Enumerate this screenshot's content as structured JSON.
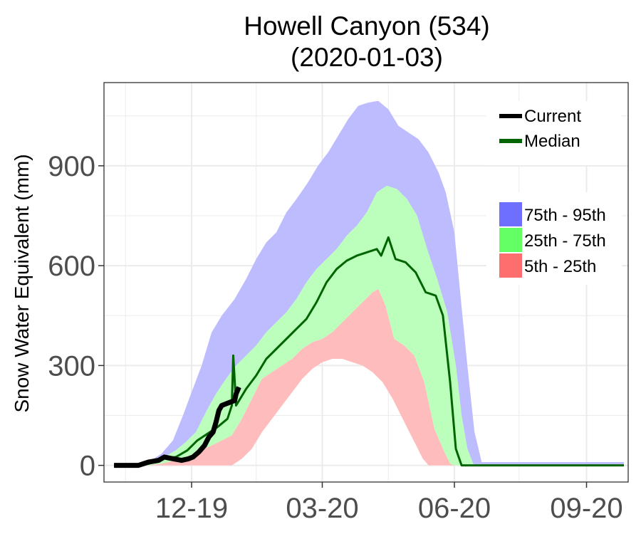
{
  "chart_data": {
    "type": "area",
    "title": [
      "Howell Canyon (534)",
      "(2020-01-03)"
    ],
    "ylabel": "Snow Water Equivalent (mm)",
    "xlabel": "",
    "xlim": [
      "2019-10-01",
      "2020-09-30"
    ],
    "ylim": [
      -50,
      1150
    ],
    "x_ticks": [
      {
        "date": "2019-12-01",
        "label": "12-19"
      },
      {
        "date": "2020-03-01",
        "label": "03-20"
      },
      {
        "date": "2020-06-01",
        "label": "06-20"
      },
      {
        "date": "2020-09-01",
        "label": "09-20"
      }
    ],
    "y_ticks": [
      0,
      300,
      600,
      900
    ],
    "grid": true,
    "legend_placement": "top-right",
    "colors": {
      "current": "#000000",
      "median": "#006400",
      "p75_95": "#6e6eff",
      "p25_75": "#64ff64",
      "p5_25": "#ff6e6e",
      "p75_95_fill": "#bcbcff",
      "p25_75_fill": "#bcffbc",
      "p5_25_fill": "#ffbcbc",
      "grid": "#ebebeb"
    },
    "legend": {
      "lines": [
        {
          "key": "current",
          "label": "Current"
        },
        {
          "key": "median",
          "label": "Median"
        }
      ],
      "bands": [
        {
          "key": "p75_95",
          "label": "75th - 95th"
        },
        {
          "key": "p25_75",
          "label": "25th - 75th"
        },
        {
          "key": "p5_25",
          "label": "5th - 25th"
        }
      ]
    },
    "series": {
      "p95": [
        [
          "2019-10-08",
          0
        ],
        [
          "2019-10-20",
          5
        ],
        [
          "2019-11-01",
          10
        ],
        [
          "2019-11-10",
          35
        ],
        [
          "2019-11-18",
          75
        ],
        [
          "2019-11-25",
          150
        ],
        [
          "2019-12-01",
          220
        ],
        [
          "2019-12-08",
          300
        ],
        [
          "2019-12-15",
          400
        ],
        [
          "2019-12-22",
          450
        ],
        [
          "2019-12-31",
          500
        ],
        [
          "2020-01-08",
          560
        ],
        [
          "2020-01-15",
          620
        ],
        [
          "2020-01-22",
          670
        ],
        [
          "2020-01-29",
          700
        ],
        [
          "2020-02-05",
          760
        ],
        [
          "2020-02-12",
          800
        ],
        [
          "2020-02-20",
          850
        ],
        [
          "2020-02-27",
          900
        ],
        [
          "2020-03-05",
          940
        ],
        [
          "2020-03-12",
          990
        ],
        [
          "2020-03-19",
          1040
        ],
        [
          "2020-03-26",
          1080
        ],
        [
          "2020-04-02",
          1090
        ],
        [
          "2020-04-09",
          1095
        ],
        [
          "2020-04-16",
          1070
        ],
        [
          "2020-04-23",
          1020
        ],
        [
          "2020-04-30",
          1000
        ],
        [
          "2020-05-07",
          980
        ],
        [
          "2020-05-14",
          940
        ],
        [
          "2020-05-21",
          880
        ],
        [
          "2020-05-26",
          820
        ],
        [
          "2020-06-01",
          700
        ],
        [
          "2020-06-05",
          520
        ],
        [
          "2020-06-10",
          300
        ],
        [
          "2020-06-15",
          100
        ],
        [
          "2020-06-20",
          10
        ],
        [
          "2020-09-27",
          10
        ]
      ],
      "p75": [
        [
          "2019-10-08",
          0
        ],
        [
          "2019-10-25",
          5
        ],
        [
          "2019-11-05",
          10
        ],
        [
          "2019-11-12",
          25
        ],
        [
          "2019-11-20",
          45
        ],
        [
          "2019-11-27",
          70
        ],
        [
          "2019-12-04",
          100
        ],
        [
          "2019-12-11",
          160
        ],
        [
          "2019-12-18",
          215
        ],
        [
          "2019-12-25",
          260
        ],
        [
          "2020-01-01",
          300
        ],
        [
          "2020-01-08",
          330
        ],
        [
          "2020-01-15",
          360
        ],
        [
          "2020-01-22",
          400
        ],
        [
          "2020-01-29",
          430
        ],
        [
          "2020-02-05",
          460
        ],
        [
          "2020-02-12",
          500
        ],
        [
          "2020-02-19",
          550
        ],
        [
          "2020-02-26",
          590
        ],
        [
          "2020-03-04",
          620
        ],
        [
          "2020-03-11",
          650
        ],
        [
          "2020-03-18",
          690
        ],
        [
          "2020-03-25",
          720
        ],
        [
          "2020-04-01",
          760
        ],
        [
          "2020-04-08",
          820
        ],
        [
          "2020-04-15",
          840
        ],
        [
          "2020-04-22",
          830
        ],
        [
          "2020-04-29",
          800
        ],
        [
          "2020-05-06",
          750
        ],
        [
          "2020-05-13",
          650
        ],
        [
          "2020-05-20",
          560
        ],
        [
          "2020-05-27",
          460
        ],
        [
          "2020-06-02",
          300
        ],
        [
          "2020-06-06",
          150
        ],
        [
          "2020-06-10",
          50
        ],
        [
          "2020-06-14",
          5
        ],
        [
          "2020-06-17",
          0
        ]
      ],
      "p25": [
        [
          "2019-10-08",
          0
        ],
        [
          "2019-11-01",
          0
        ],
        [
          "2019-11-10",
          5
        ],
        [
          "2019-11-20",
          15
        ],
        [
          "2019-11-30",
          30
        ],
        [
          "2019-12-10",
          50
        ],
        [
          "2019-12-20",
          70
        ],
        [
          "2019-12-29",
          90
        ],
        [
          "2020-01-05",
          140
        ],
        [
          "2020-01-12",
          200
        ],
        [
          "2020-01-19",
          260
        ],
        [
          "2020-01-26",
          280
        ],
        [
          "2020-02-02",
          300
        ],
        [
          "2020-02-09",
          320
        ],
        [
          "2020-02-16",
          350
        ],
        [
          "2020-02-23",
          370
        ],
        [
          "2020-03-01",
          380
        ],
        [
          "2020-03-08",
          400
        ],
        [
          "2020-03-15",
          430
        ],
        [
          "2020-03-22",
          460
        ],
        [
          "2020-03-29",
          490
        ],
        [
          "2020-04-05",
          520
        ],
        [
          "2020-04-09",
          530
        ],
        [
          "2020-04-14",
          480
        ],
        [
          "2020-04-20",
          380
        ],
        [
          "2020-04-27",
          360
        ],
        [
          "2020-05-04",
          330
        ],
        [
          "2020-05-11",
          250
        ],
        [
          "2020-05-18",
          110
        ],
        [
          "2020-05-25",
          40
        ],
        [
          "2020-05-29",
          5
        ],
        [
          "2020-06-01",
          0
        ]
      ],
      "p5": [
        [
          "2019-10-08",
          0
        ],
        [
          "2019-12-29",
          0
        ],
        [
          "2020-01-05",
          20
        ],
        [
          "2020-01-12",
          50
        ],
        [
          "2020-01-19",
          100
        ],
        [
          "2020-01-26",
          140
        ],
        [
          "2020-02-02",
          180
        ],
        [
          "2020-02-09",
          220
        ],
        [
          "2020-02-16",
          260
        ],
        [
          "2020-02-23",
          290
        ],
        [
          "2020-03-01",
          310
        ],
        [
          "2020-03-08",
          320
        ],
        [
          "2020-03-15",
          320
        ],
        [
          "2020-03-22",
          310
        ],
        [
          "2020-03-29",
          300
        ],
        [
          "2020-04-05",
          280
        ],
        [
          "2020-04-12",
          250
        ],
        [
          "2020-04-19",
          200
        ],
        [
          "2020-04-26",
          140
        ],
        [
          "2020-05-03",
          80
        ],
        [
          "2020-05-10",
          20
        ],
        [
          "2020-05-14",
          0
        ]
      ],
      "median": [
        [
          "2019-10-08",
          0
        ],
        [
          "2019-10-20",
          0
        ],
        [
          "2019-11-01",
          5
        ],
        [
          "2019-11-10",
          20
        ],
        [
          "2019-11-20",
          25
        ],
        [
          "2019-11-28",
          45
        ],
        [
          "2019-12-05",
          75
        ],
        [
          "2019-12-12",
          95
        ],
        [
          "2019-12-19",
          115
        ],
        [
          "2019-12-26",
          140
        ],
        [
          "2019-12-29",
          180
        ],
        [
          "2019-12-30",
          330
        ],
        [
          "2020-01-01",
          180
        ],
        [
          "2020-01-08",
          230
        ],
        [
          "2020-01-15",
          270
        ],
        [
          "2020-01-22",
          320
        ],
        [
          "2020-01-29",
          350
        ],
        [
          "2020-02-05",
          380
        ],
        [
          "2020-02-12",
          410
        ],
        [
          "2020-02-19",
          440
        ],
        [
          "2020-02-26",
          490
        ],
        [
          "2020-03-04",
          550
        ],
        [
          "2020-03-11",
          590
        ],
        [
          "2020-03-18",
          615
        ],
        [
          "2020-03-25",
          630
        ],
        [
          "2020-04-01",
          640
        ],
        [
          "2020-04-08",
          650
        ],
        [
          "2020-04-11",
          630
        ],
        [
          "2020-04-16",
          685
        ],
        [
          "2020-04-21",
          620
        ],
        [
          "2020-04-28",
          610
        ],
        [
          "2020-05-05",
          580
        ],
        [
          "2020-05-12",
          520
        ],
        [
          "2020-05-19",
          510
        ],
        [
          "2020-05-24",
          450
        ],
        [
          "2020-05-29",
          250
        ],
        [
          "2020-06-02",
          50
        ],
        [
          "2020-06-06",
          0
        ],
        [
          "2020-09-27",
          0
        ]
      ],
      "current": [
        [
          "2019-10-08",
          0
        ],
        [
          "2019-10-25",
          0
        ],
        [
          "2019-11-01",
          10
        ],
        [
          "2019-11-08",
          15
        ],
        [
          "2019-11-12",
          25
        ],
        [
          "2019-11-18",
          20
        ],
        [
          "2019-11-24",
          15
        ],
        [
          "2019-11-29",
          20
        ],
        [
          "2019-12-02",
          25
        ],
        [
          "2019-12-06",
          40
        ],
        [
          "2019-12-10",
          60
        ],
        [
          "2019-12-13",
          85
        ],
        [
          "2019-12-16",
          100
        ],
        [
          "2019-12-18",
          130
        ],
        [
          "2019-12-20",
          165
        ],
        [
          "2019-12-22",
          180
        ],
        [
          "2019-12-25",
          185
        ],
        [
          "2019-12-28",
          190
        ],
        [
          "2019-12-31",
          195
        ],
        [
          "2020-01-01",
          215
        ],
        [
          "2020-01-03",
          235
        ]
      ]
    }
  }
}
